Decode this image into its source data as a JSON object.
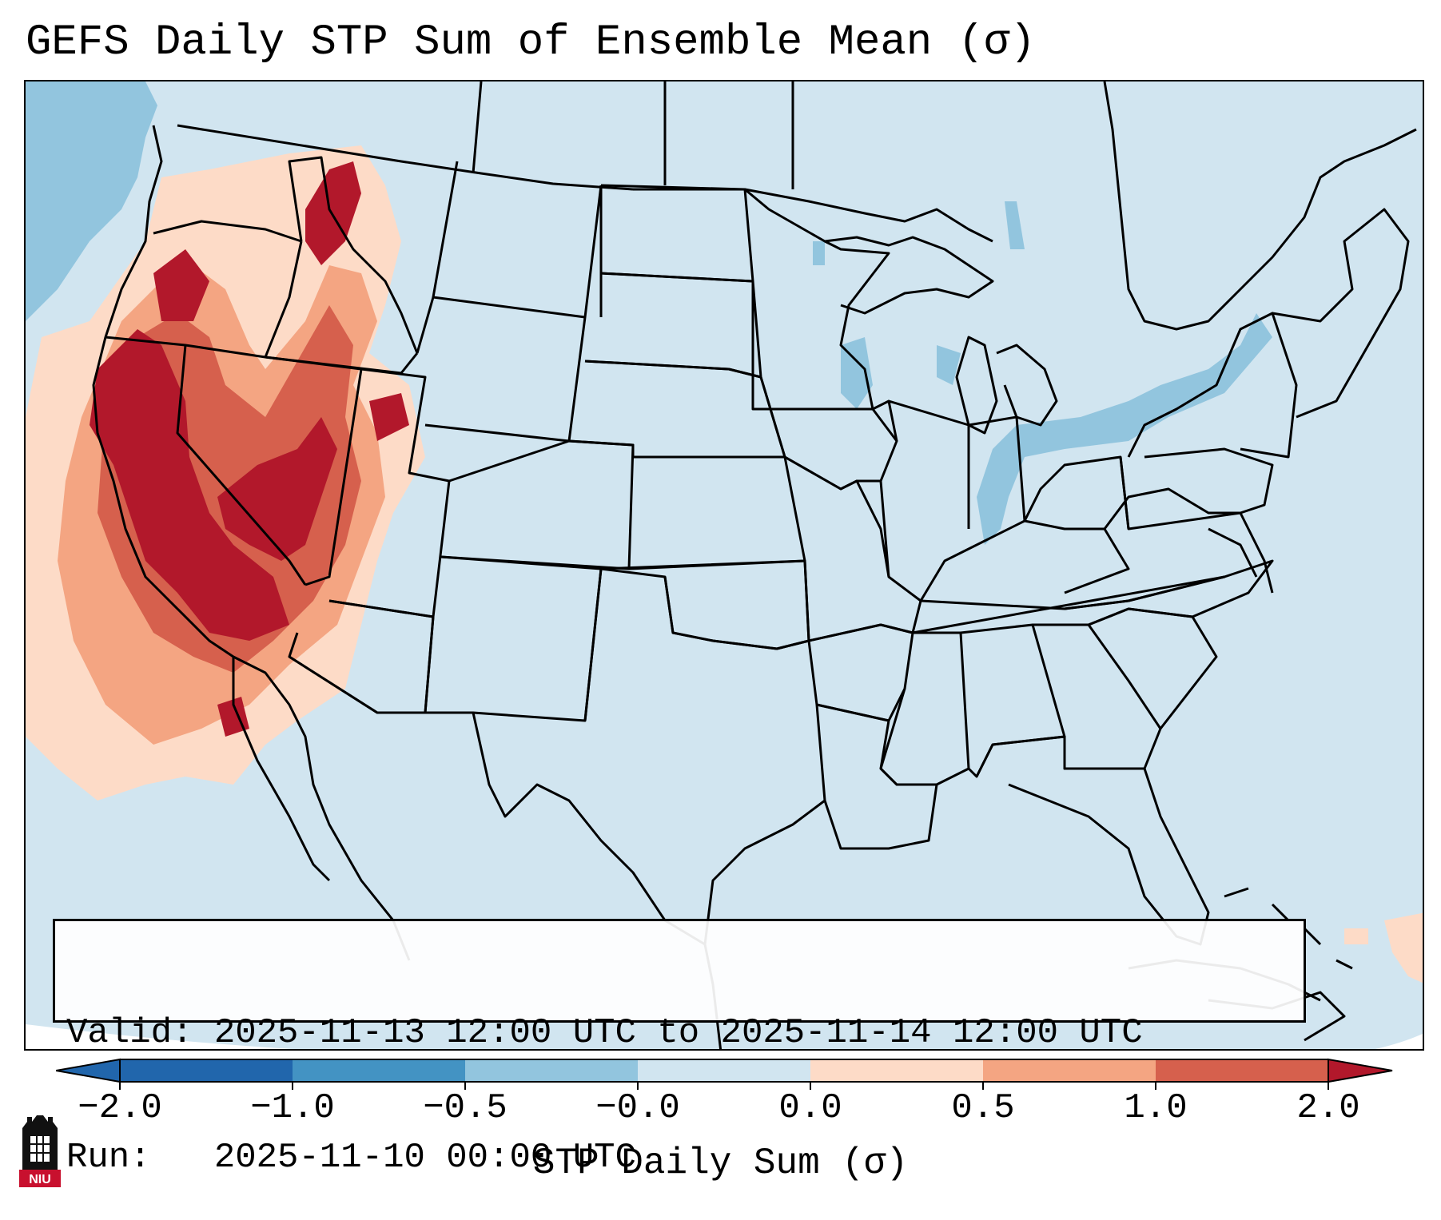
{
  "map": {
    "title": "GEFS Daily STP Sum of Ensemble Mean (σ)",
    "region": "Continental United States",
    "colors": {
      "background_field": "#d1e5f0",
      "ocean_edge": "#ffffff",
      "state_lines": "#000000",
      "level_-2": "#2166ac",
      "level_-1": "#4393c3",
      "level_-0.5": "#92c5de",
      "level_neg0": "#d1e5f0",
      "level_0": "#fddbc7",
      "level_0.5": "#f4a582",
      "level_1": "#d6604d",
      "level_2": "#b2182b"
    },
    "info": {
      "valid_line": "Valid: 2025-11-13 12:00 UTC to 2025-11-14 12:00 UTC",
      "run_line": "Run:   2025-11-10 00:00 UTC"
    },
    "colorbar": {
      "label": "STP Daily Sum (σ)",
      "ticks": [
        "−2.0",
        "−1.0",
        "−0.5",
        "−0.0",
        "0.0",
        "0.5",
        "1.0",
        "2.0"
      ],
      "segments": [
        "#2166ac",
        "#4393c3",
        "#92c5de",
        "#d1e5f0",
        "#fddbc7",
        "#f4a582",
        "#d6604d",
        "#b2182b"
      ],
      "extend": "both"
    },
    "logo": {
      "text": "NIU"
    }
  }
}
